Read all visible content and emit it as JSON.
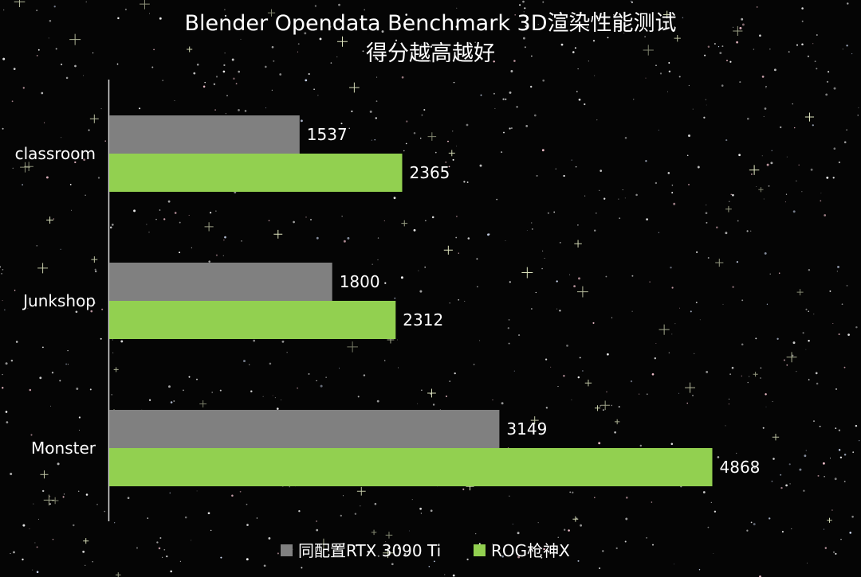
{
  "chart_data": {
    "type": "bar",
    "orientation": "horizontal",
    "title": [
      "Blender Opendata Benchmark 3D渲染性能测试",
      "得分越高越好"
    ],
    "categories": [
      "classroom",
      "Junkshop",
      "Monster"
    ],
    "series": [
      {
        "name": "同配置RTX 3090 Ti",
        "color": "#808080",
        "values": [
          1537,
          1800,
          3149
        ]
      },
      {
        "name": "ROG枪神X",
        "color": "#92d050",
        "values": [
          2365,
          2312,
          4868
        ]
      }
    ],
    "xlim": [
      0,
      5000
    ],
    "grid": false,
    "legend": "bottom",
    "background": "starfield"
  }
}
